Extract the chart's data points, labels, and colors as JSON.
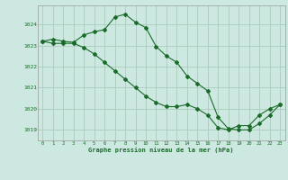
{
  "title": "Graphe pression niveau de la mer (hPa)",
  "bg_color": "#cce8e0",
  "grid_color": "#aaccbb",
  "line_color": "#1a6b2a",
  "marker_color": "#1a6b2a",
  "xlim": [
    -0.5,
    23.5
  ],
  "ylim": [
    1018.5,
    1024.9
  ],
  "yticks": [
    1019,
    1020,
    1021,
    1022,
    1023,
    1024
  ],
  "xticks": [
    0,
    1,
    2,
    3,
    4,
    5,
    6,
    7,
    8,
    9,
    10,
    11,
    12,
    13,
    14,
    15,
    16,
    17,
    18,
    19,
    20,
    21,
    22,
    23
  ],
  "series1_x": [
    0,
    1,
    2,
    3,
    4,
    5,
    6,
    7,
    8,
    9,
    10,
    11,
    12,
    13,
    14,
    15,
    16,
    17,
    18,
    19,
    20,
    21,
    22,
    23
  ],
  "series1_y": [
    1023.2,
    1023.3,
    1023.2,
    1023.15,
    1023.5,
    1023.65,
    1023.75,
    1024.35,
    1024.48,
    1024.1,
    1023.85,
    1022.95,
    1022.5,
    1022.2,
    1021.55,
    1021.2,
    1020.85,
    1019.6,
    1019.05,
    1019.0,
    1019.0,
    1019.3,
    1019.7,
    1020.2
  ],
  "series2_x": [
    0,
    1,
    2,
    3,
    4,
    5,
    6,
    7,
    8,
    9,
    10,
    11,
    12,
    13,
    14,
    15,
    16,
    17,
    18,
    19,
    20,
    21,
    22,
    23
  ],
  "series2_y": [
    1023.2,
    1023.1,
    1023.1,
    1023.1,
    1022.9,
    1022.6,
    1022.2,
    1021.8,
    1021.4,
    1021.0,
    1020.6,
    1020.3,
    1020.1,
    1020.1,
    1020.2,
    1020.0,
    1019.7,
    1019.1,
    1019.0,
    1019.2,
    1019.2,
    1019.7,
    1020.0,
    1020.2
  ]
}
